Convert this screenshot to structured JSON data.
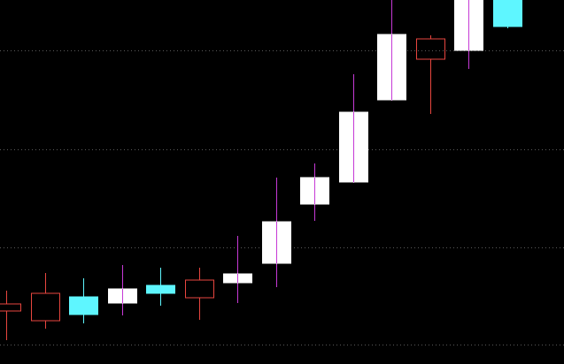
{
  "chart_data": {
    "type": "candlestick",
    "title": "",
    "xlabel": "",
    "ylabel": "",
    "grid": true,
    "legend": "none",
    "ylim": [
      0,
      412
    ],
    "candles": [
      {
        "open": 60,
        "high": 83,
        "low": 27,
        "close": 68,
        "style": "red-hollow"
      },
      {
        "open": 49,
        "high": 103,
        "low": 40,
        "close": 80,
        "style": "red-hollow"
      },
      {
        "open": 76,
        "high": 97,
        "low": 46,
        "close": 56,
        "style": "cyan-filled"
      },
      {
        "open": 85,
        "high": 112,
        "low": 55,
        "close": 69,
        "style": "white-filled"
      },
      {
        "open": 89,
        "high": 109,
        "low": 66,
        "close": 80,
        "style": "cyan-filled"
      },
      {
        "open": 75,
        "high": 109,
        "low": 50,
        "close": 95,
        "style": "red-hollow"
      },
      {
        "open": 102,
        "high": 145,
        "low": 69,
        "close": 92,
        "style": "white-filled"
      },
      {
        "open": 161,
        "high": 211,
        "low": 87,
        "close": 114,
        "style": "white-filled"
      },
      {
        "open": 211,
        "high": 227,
        "low": 162,
        "close": 181,
        "style": "white-filled"
      },
      {
        "open": 285,
        "high": 328,
        "low": 205,
        "close": 206,
        "style": "white-filled"
      },
      {
        "open": 373,
        "high": 412,
        "low": 298,
        "close": 299,
        "style": "white-filled"
      },
      {
        "open": 345,
        "high": 372,
        "low": 283,
        "close": 368,
        "style": "red-hollow"
      },
      {
        "open": 412,
        "high": 412,
        "low": 334,
        "close": 355,
        "style": "white-filled"
      },
      {
        "open": 412,
        "high": 412,
        "low": 380,
        "close": 382,
        "style": "cyan-filled"
      }
    ],
    "gridlines": [
      22,
      132,
      243,
      355
    ]
  },
  "colors": {
    "background": "#000000",
    "grid": "#5a5a5a",
    "red": "#e8463f",
    "cyan": "#5ef6ff",
    "white": "#ffffff",
    "wick_up": "#c63ad6"
  }
}
